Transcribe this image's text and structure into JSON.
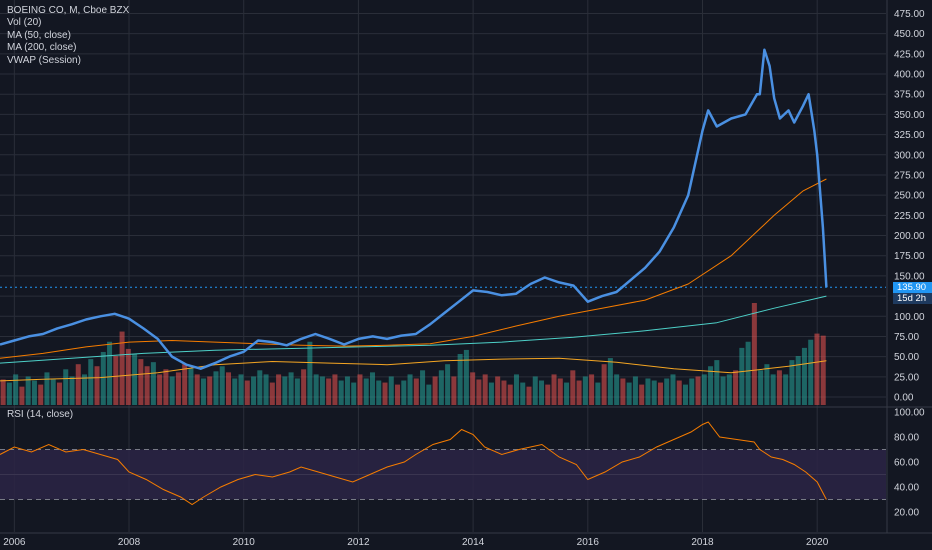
{
  "legend": {
    "symbol": "BOEING CO, M, Cboe BZX",
    "vol": "Vol (20)",
    "ma50": "MA (50, close)",
    "ma200": "MA (200, close)",
    "vwap": "VWAP (Session)"
  },
  "rsi_legend": "RSI (14, close)",
  "price_label": "135.90",
  "countdown_label": "15d 2h",
  "colors": {
    "background": "#131722",
    "grid": "#2a2e39",
    "price_line": "#4a90e2",
    "ma50": "#f57c00",
    "ma200": "#4dd0c8",
    "vwap": "#f5a623",
    "vol_up": "#26a69a",
    "vol_down": "#ef5350",
    "rsi_line": "#f57c00",
    "rsi_band": "#2b2445",
    "text": "#d1d4dc"
  },
  "chart_data": [
    {
      "type": "line",
      "name": "price",
      "x_ticks": [
        "2006",
        "2008",
        "2010",
        "2012",
        "2014",
        "2016",
        "2018",
        "2020"
      ],
      "y_ticks": [
        "0.00",
        "25.00",
        "50.00",
        "75.00",
        "100.00",
        "125.00",
        "150.00",
        "175.00",
        "200.00",
        "225.00",
        "250.00",
        "275.00",
        "300.00",
        "325.00",
        "350.00",
        "375.00",
        "400.00",
        "425.00",
        "450.00",
        "475.00"
      ],
      "ylim": [
        0,
        475
      ],
      "xlim": [
        2005.75,
        2021.2
      ],
      "last_price": 135.9,
      "series": [
        {
          "key": "close",
          "points": [
            [
              2005.75,
              65
            ],
            [
              2006.0,
              70
            ],
            [
              2006.25,
              75
            ],
            [
              2006.5,
              78
            ],
            [
              2006.75,
              85
            ],
            [
              2007.0,
              90
            ],
            [
              2007.25,
              96
            ],
            [
              2007.5,
              100
            ],
            [
              2007.75,
              103
            ],
            [
              2008.0,
              97
            ],
            [
              2008.25,
              85
            ],
            [
              2008.5,
              72
            ],
            [
              2008.75,
              50
            ],
            [
              2009.0,
              40
            ],
            [
              2009.25,
              35
            ],
            [
              2009.5,
              42
            ],
            [
              2009.75,
              50
            ],
            [
              2010.0,
              56
            ],
            [
              2010.25,
              70
            ],
            [
              2010.5,
              68
            ],
            [
              2010.75,
              64
            ],
            [
              2011.0,
              72
            ],
            [
              2011.25,
              78
            ],
            [
              2011.5,
              72
            ],
            [
              2011.75,
              65
            ],
            [
              2012.0,
              72
            ],
            [
              2012.25,
              75
            ],
            [
              2012.5,
              72
            ],
            [
              2012.75,
              76
            ],
            [
              2013.0,
              78
            ],
            [
              2013.25,
              90
            ],
            [
              2013.5,
              104
            ],
            [
              2013.75,
              118
            ],
            [
              2014.0,
              132
            ],
            [
              2014.25,
              130
            ],
            [
              2014.5,
              126
            ],
            [
              2014.75,
              128
            ],
            [
              2015.0,
              140
            ],
            [
              2015.25,
              148
            ],
            [
              2015.5,
              142
            ],
            [
              2015.75,
              138
            ],
            [
              2016.0,
              118
            ],
            [
              2016.25,
              125
            ],
            [
              2016.5,
              130
            ],
            [
              2016.75,
              145
            ],
            [
              2017.0,
              160
            ],
            [
              2017.25,
              180
            ],
            [
              2017.5,
              210
            ],
            [
              2017.75,
              250
            ],
            [
              2018.0,
              330
            ],
            [
              2018.1,
              355
            ],
            [
              2018.25,
              335
            ],
            [
              2018.5,
              345
            ],
            [
              2018.75,
              350
            ],
            [
              2018.95,
              375
            ],
            [
              2019.0,
              375
            ],
            [
              2019.08,
              430
            ],
            [
              2019.17,
              410
            ],
            [
              2019.25,
              370
            ],
            [
              2019.35,
              345
            ],
            [
              2019.5,
              355
            ],
            [
              2019.6,
              340
            ],
            [
              2019.75,
              360
            ],
            [
              2019.85,
              375
            ],
            [
              2019.95,
              330
            ],
            [
              2020.0,
              300
            ],
            [
              2020.1,
              210
            ],
            [
              2020.16,
              135.9
            ]
          ]
        },
        {
          "key": "ma50",
          "points": [
            [
              2005.75,
              48
            ],
            [
              2006.5,
              54
            ],
            [
              2007.25,
              62
            ],
            [
              2008.0,
              68
            ],
            [
              2008.75,
              70
            ],
            [
              2009.5,
              68
            ],
            [
              2010.25,
              66
            ],
            [
              2011.0,
              64
            ],
            [
              2011.75,
              63
            ],
            [
              2012.5,
              64
            ],
            [
              2013.25,
              66
            ],
            [
              2014.0,
              75
            ],
            [
              2014.75,
              88
            ],
            [
              2015.5,
              100
            ],
            [
              2016.25,
              110
            ],
            [
              2017.0,
              120
            ],
            [
              2017.75,
              140
            ],
            [
              2018.5,
              175
            ],
            [
              2019.25,
              225
            ],
            [
              2019.75,
              255
            ],
            [
              2020.16,
              270
            ]
          ]
        },
        {
          "key": "ma200",
          "points": [
            [
              2005.75,
              42
            ],
            [
              2007.0,
              48
            ],
            [
              2008.25,
              54
            ],
            [
              2009.5,
              58
            ],
            [
              2010.75,
              60
            ],
            [
              2012.0,
              62
            ],
            [
              2013.25,
              64
            ],
            [
              2014.5,
              68
            ],
            [
              2015.75,
              74
            ],
            [
              2017.0,
              82
            ],
            [
              2018.25,
              92
            ],
            [
              2019.25,
              110
            ],
            [
              2020.16,
              125
            ]
          ]
        },
        {
          "key": "vwap",
          "points": [
            [
              2005.75,
              20
            ],
            [
              2006.5,
              22
            ],
            [
              2007.5,
              24
            ],
            [
              2008.5,
              30
            ],
            [
              2009.5,
              40
            ],
            [
              2010.5,
              44
            ],
            [
              2011.5,
              42
            ],
            [
              2012.5,
              40
            ],
            [
              2013.5,
              45
            ],
            [
              2014.5,
              47
            ],
            [
              2015.5,
              48
            ],
            [
              2016.5,
              43
            ],
            [
              2017.5,
              35
            ],
            [
              2018.5,
              30
            ],
            [
              2019.5,
              38
            ],
            [
              2020.16,
              45
            ]
          ]
        }
      ]
    },
    {
      "type": "bar",
      "name": "volume",
      "max_volume": 1.0,
      "pattern": [
        0.25,
        0.22,
        0.3,
        0.18,
        0.28,
        0.24,
        0.2,
        0.32,
        0.26,
        0.22,
        0.35,
        0.28,
        0.4,
        0.3,
        0.45,
        0.38,
        0.52,
        0.62,
        0.48,
        0.72,
        0.55,
        0.5,
        0.45,
        0.38,
        0.42,
        0.3,
        0.35,
        0.28,
        0.32,
        0.4,
        0.36,
        0.3,
        0.26,
        0.28,
        0.33,
        0.38,
        0.32,
        0.26,
        0.3,
        0.24,
        0.28,
        0.34,
        0.3,
        0.22,
        0.3,
        0.28,
        0.32,
        0.26,
        0.35,
        0.62,
        0.3,
        0.28,
        0.26,
        0.3,
        0.24,
        0.28,
        0.22,
        0.3,
        0.26,
        0.32,
        0.24,
        0.22,
        0.28,
        0.2,
        0.24,
        0.3,
        0.26,
        0.34,
        0.2,
        0.28,
        0.34,
        0.4,
        0.28,
        0.5,
        0.54,
        0.32,
        0.25,
        0.3,
        0.22,
        0.28,
        0.24,
        0.2,
        0.3,
        0.22,
        0.18,
        0.28,
        0.24,
        0.2,
        0.3,
        0.26,
        0.22,
        0.34,
        0.24,
        0.28,
        0.3,
        0.22,
        0.4,
        0.46,
        0.3,
        0.26,
        0.22,
        0.28,
        0.2,
        0.26,
        0.24,
        0.22,
        0.26,
        0.3,
        0.24,
        0.2,
        0.26,
        0.28,
        0.3,
        0.38,
        0.44,
        0.28,
        0.3,
        0.34,
        0.56,
        0.62,
        1.0,
        0.34,
        0.4,
        0.3,
        0.34,
        0.3,
        0.44,
        0.48,
        0.56,
        0.64,
        0.7,
        0.68
      ]
    },
    {
      "type": "line",
      "name": "rsi",
      "ylim": [
        20,
        100
      ],
      "y_ticks": [
        "20.00",
        "40.00",
        "60.00",
        "80.00",
        "100.00"
      ],
      "band": [
        30,
        70
      ],
      "points": [
        [
          2005.75,
          66
        ],
        [
          2006.0,
          72
        ],
        [
          2006.3,
          68
        ],
        [
          2006.6,
          74
        ],
        [
          2006.9,
          68
        ],
        [
          2007.2,
          70
        ],
        [
          2007.5,
          66
        ],
        [
          2007.8,
          62
        ],
        [
          2008.0,
          52
        ],
        [
          2008.3,
          46
        ],
        [
          2008.6,
          38
        ],
        [
          2008.9,
          32
        ],
        [
          2009.1,
          26
        ],
        [
          2009.3,
          32
        ],
        [
          2009.6,
          40
        ],
        [
          2009.9,
          46
        ],
        [
          2010.2,
          50
        ],
        [
          2010.5,
          48
        ],
        [
          2010.8,
          52
        ],
        [
          2011.0,
          56
        ],
        [
          2011.3,
          52
        ],
        [
          2011.6,
          48
        ],
        [
          2011.9,
          44
        ],
        [
          2012.2,
          50
        ],
        [
          2012.5,
          56
        ],
        [
          2012.8,
          60
        ],
        [
          2013.0,
          66
        ],
        [
          2013.3,
          74
        ],
        [
          2013.6,
          78
        ],
        [
          2013.8,
          86
        ],
        [
          2014.0,
          82
        ],
        [
          2014.2,
          72
        ],
        [
          2014.5,
          66
        ],
        [
          2014.8,
          70
        ],
        [
          2015.0,
          72
        ],
        [
          2015.2,
          74
        ],
        [
          2015.5,
          64
        ],
        [
          2015.8,
          58
        ],
        [
          2016.0,
          46
        ],
        [
          2016.3,
          52
        ],
        [
          2016.6,
          60
        ],
        [
          2016.9,
          64
        ],
        [
          2017.2,
          72
        ],
        [
          2017.5,
          78
        ],
        [
          2017.8,
          84
        ],
        [
          2018.0,
          90
        ],
        [
          2018.1,
          92
        ],
        [
          2018.3,
          80
        ],
        [
          2018.6,
          78
        ],
        [
          2018.9,
          76
        ],
        [
          2019.0,
          70
        ],
        [
          2019.2,
          64
        ],
        [
          2019.4,
          62
        ],
        [
          2019.6,
          58
        ],
        [
          2019.8,
          52
        ],
        [
          2020.0,
          44
        ],
        [
          2020.16,
          30
        ]
      ],
      "label": "RSI (14, close)"
    }
  ]
}
